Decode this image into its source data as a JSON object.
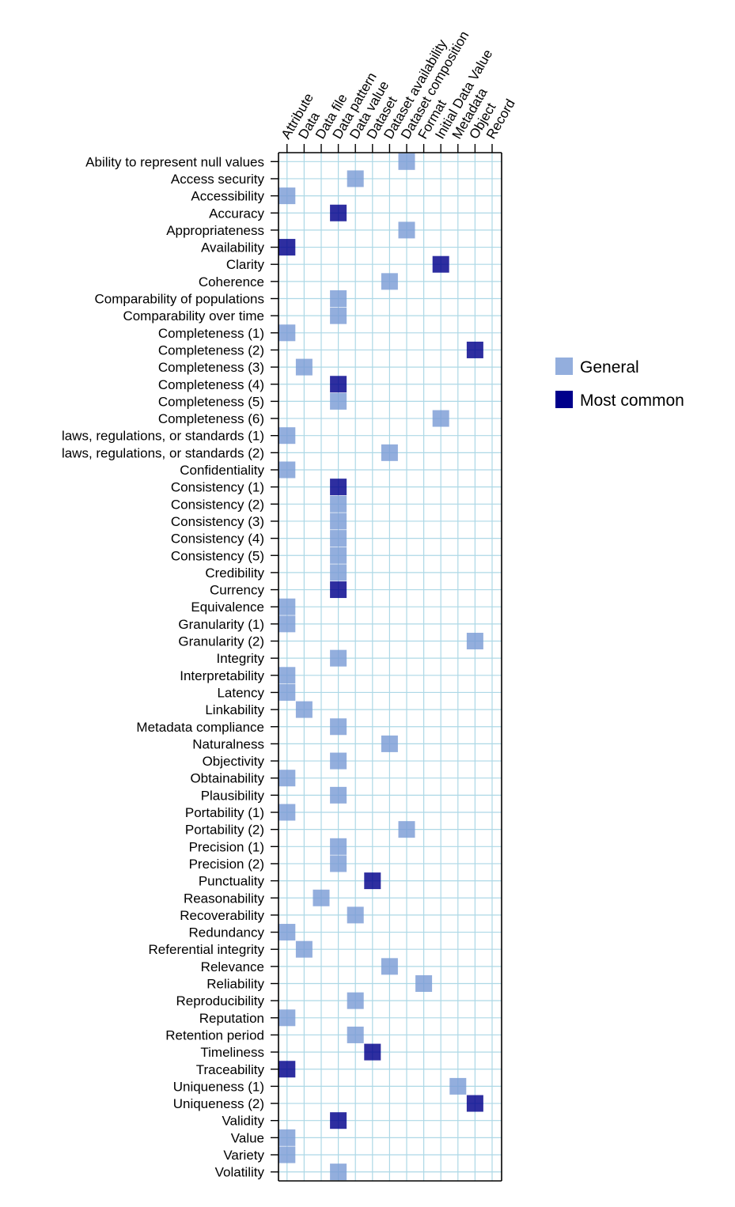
{
  "chart_data": {
    "type": "heatmap",
    "columns": [
      "Attribute",
      "Data",
      "Data file",
      "Data pattern",
      "Data value",
      "Dataset",
      "Dataset availability",
      "Dataset composition",
      "Format",
      "Initial Data Value",
      "Metadata",
      "Object",
      "Record"
    ],
    "rows": [
      "Ability to represent null values",
      "Access security",
      "Accessibility",
      "Accuracy",
      "Appropriateness",
      "Availability",
      "Clarity",
      "Coherence",
      "Comparability of populations",
      "Comparability over time",
      "Completeness (1)",
      "Completeness (2)",
      "Completeness (3)",
      "Completeness (4)",
      "Completeness (5)",
      "Completeness (6)",
      "laws, regulations, or standards (1)",
      "laws, regulations, or standards (2)",
      "Confidentiality",
      "Consistency (1)",
      "Consistency (2)",
      "Consistency (3)",
      "Consistency (4)",
      "Consistency (5)",
      "Credibility",
      "Currency",
      "Equivalence",
      "Granularity (1)",
      "Granularity (2)",
      "Integrity",
      "Interpretability",
      "Latency",
      "Linkability",
      "Metadata compliance",
      "Naturalness",
      "Objectivity",
      "Obtainability",
      "Plausibility",
      "Portability (1)",
      "Portability (2)",
      "Precision (1)",
      "Precision (2)",
      "Punctuality",
      "Reasonability",
      "Recoverability",
      "Redundancy",
      "Referential integrity",
      "Relevance",
      "Reliability",
      "Reproducibility",
      "Reputation",
      "Retention period",
      "Timeliness",
      "Traceability",
      "Uniqueness (1)",
      "Uniqueness (2)",
      "Validity",
      "Value",
      "Variety",
      "Volatility"
    ],
    "cells": [
      {
        "row": "Ability to represent null values",
        "column": "Dataset composition",
        "category": "General"
      },
      {
        "row": "Access security",
        "column": "Data value",
        "category": "General"
      },
      {
        "row": "Accessibility",
        "column": "Attribute",
        "category": "General"
      },
      {
        "row": "Accuracy",
        "column": "Data pattern",
        "category": "Most common"
      },
      {
        "row": "Appropriateness",
        "column": "Dataset composition",
        "category": "General"
      },
      {
        "row": "Availability",
        "column": "Attribute",
        "category": "Most common"
      },
      {
        "row": "Clarity",
        "column": "Initial Data Value",
        "category": "Most common"
      },
      {
        "row": "Coherence",
        "column": "Dataset availability",
        "category": "General"
      },
      {
        "row": "Comparability of populations",
        "column": "Data pattern",
        "category": "General"
      },
      {
        "row": "Comparability over time",
        "column": "Data pattern",
        "category": "General"
      },
      {
        "row": "Completeness (1)",
        "column": "Attribute",
        "category": "General"
      },
      {
        "row": "Completeness (2)",
        "column": "Object",
        "category": "Most common"
      },
      {
        "row": "Completeness (3)",
        "column": "Data",
        "category": "General"
      },
      {
        "row": "Completeness (4)",
        "column": "Data pattern",
        "category": "Most common"
      },
      {
        "row": "Completeness (5)",
        "column": "Data pattern",
        "category": "General"
      },
      {
        "row": "Completeness (6)",
        "column": "Initial Data Value",
        "category": "General"
      },
      {
        "row": "laws, regulations, or standards (1)",
        "column": "Attribute",
        "category": "General"
      },
      {
        "row": "laws, regulations, or standards (2)",
        "column": "Dataset availability",
        "category": "General"
      },
      {
        "row": "Confidentiality",
        "column": "Attribute",
        "category": "General"
      },
      {
        "row": "Consistency (1)",
        "column": "Data pattern",
        "category": "Most common"
      },
      {
        "row": "Consistency (2)",
        "column": "Data pattern",
        "category": "General"
      },
      {
        "row": "Consistency (3)",
        "column": "Data pattern",
        "category": "General"
      },
      {
        "row": "Consistency (4)",
        "column": "Data pattern",
        "category": "General"
      },
      {
        "row": "Consistency (5)",
        "column": "Data pattern",
        "category": "General"
      },
      {
        "row": "Credibility",
        "column": "Data pattern",
        "category": "General"
      },
      {
        "row": "Currency",
        "column": "Data pattern",
        "category": "Most common"
      },
      {
        "row": "Equivalence",
        "column": "Attribute",
        "category": "General"
      },
      {
        "row": "Granularity (1)",
        "column": "Attribute",
        "category": "General"
      },
      {
        "row": "Granularity (2)",
        "column": "Object",
        "category": "General"
      },
      {
        "row": "Integrity",
        "column": "Data pattern",
        "category": "General"
      },
      {
        "row": "Interpretability",
        "column": "Attribute",
        "category": "General"
      },
      {
        "row": "Latency",
        "column": "Attribute",
        "category": "General"
      },
      {
        "row": "Linkability",
        "column": "Data",
        "category": "General"
      },
      {
        "row": "Metadata compliance",
        "column": "Data pattern",
        "category": "General"
      },
      {
        "row": "Naturalness",
        "column": "Dataset availability",
        "category": "General"
      },
      {
        "row": "Objectivity",
        "column": "Data pattern",
        "category": "General"
      },
      {
        "row": "Obtainability",
        "column": "Attribute",
        "category": "General"
      },
      {
        "row": "Plausibility",
        "column": "Data pattern",
        "category": "General"
      },
      {
        "row": "Portability (1)",
        "column": "Attribute",
        "category": "General"
      },
      {
        "row": "Portability (2)",
        "column": "Dataset composition",
        "category": "General"
      },
      {
        "row": "Precision (1)",
        "column": "Data pattern",
        "category": "General"
      },
      {
        "row": "Precision (2)",
        "column": "Data pattern",
        "category": "General"
      },
      {
        "row": "Punctuality",
        "column": "Dataset",
        "category": "Most common"
      },
      {
        "row": "Reasonability",
        "column": "Data file",
        "category": "General"
      },
      {
        "row": "Recoverability",
        "column": "Data value",
        "category": "General"
      },
      {
        "row": "Redundancy",
        "column": "Attribute",
        "category": "General"
      },
      {
        "row": "Referential integrity",
        "column": "Data",
        "category": "General"
      },
      {
        "row": "Relevance",
        "column": "Dataset availability",
        "category": "General"
      },
      {
        "row": "Reliability",
        "column": "Format",
        "category": "General"
      },
      {
        "row": "Reproducibility",
        "column": "Data value",
        "category": "General"
      },
      {
        "row": "Reputation",
        "column": "Attribute",
        "category": "General"
      },
      {
        "row": "Retention period",
        "column": "Data value",
        "category": "General"
      },
      {
        "row": "Timeliness",
        "column": "Dataset",
        "category": "Most common"
      },
      {
        "row": "Traceability",
        "column": "Attribute",
        "category": "Most common"
      },
      {
        "row": "Uniqueness (1)",
        "column": "Metadata",
        "category": "General"
      },
      {
        "row": "Uniqueness (2)",
        "column": "Object",
        "category": "Most common"
      },
      {
        "row": "Validity",
        "column": "Data pattern",
        "category": "Most common"
      },
      {
        "row": "Value",
        "column": "Attribute",
        "category": "General"
      },
      {
        "row": "Variety",
        "column": "Attribute",
        "category": "General"
      },
      {
        "row": "Volatility",
        "column": "Data pattern",
        "category": "General"
      }
    ],
    "legend": [
      {
        "label": "General",
        "color": "#7b9cd6"
      },
      {
        "label": "Most common",
        "color": "#00008b"
      }
    ],
    "legend_position": "right",
    "grid": true,
    "grid_color": "#add8e6",
    "title": "",
    "xlabel": "",
    "ylabel": ""
  }
}
